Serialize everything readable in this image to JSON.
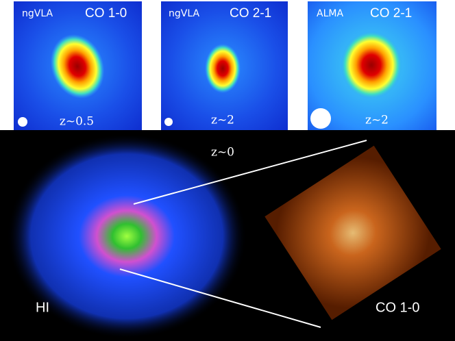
{
  "panels": [
    {
      "instrument": "ngVLA",
      "line": "CO 1-0",
      "redshift": "z~0.5"
    },
    {
      "instrument": "ngVLA",
      "line": "CO 2-1",
      "redshift": "z~2"
    },
    {
      "instrument": "ALMA",
      "line": "CO 2-1",
      "redshift": "z~2"
    }
  ],
  "main": {
    "redshift": "z~0",
    "left_label": "HI",
    "right_label": "CO 1-0"
  }
}
